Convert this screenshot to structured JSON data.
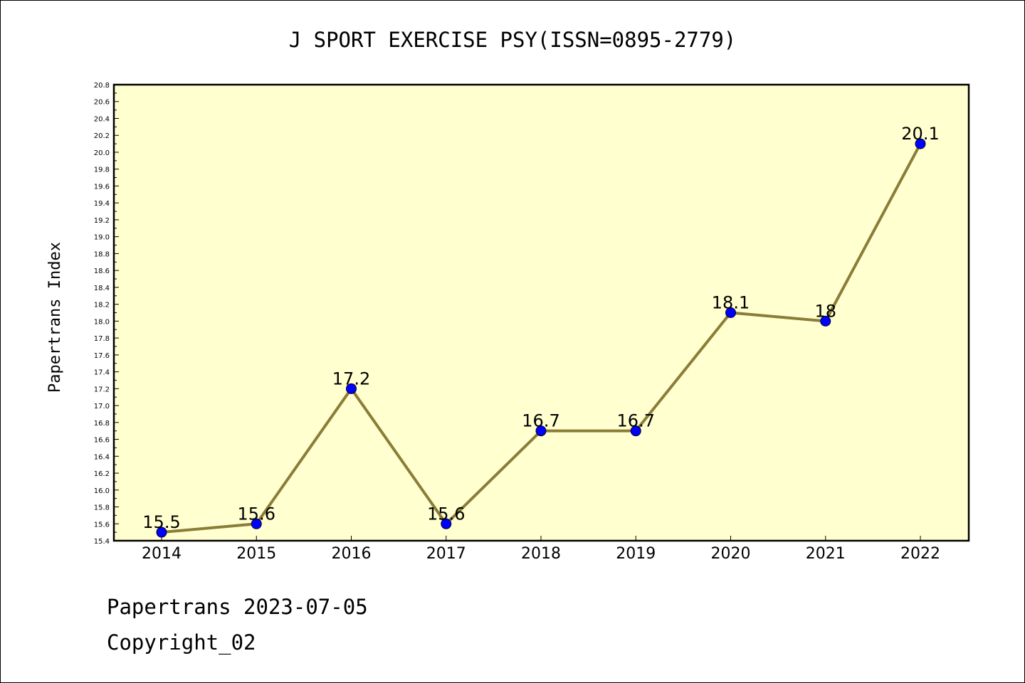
{
  "chart_data": {
    "type": "line",
    "title": "J SPORT EXERCISE PSY(ISSN=0895-2779)",
    "ylabel": "Papertrans Index",
    "xlabel": "",
    "categories": [
      "2014",
      "2015",
      "2016",
      "2017",
      "2018",
      "2019",
      "2020",
      "2021",
      "2022"
    ],
    "values": [
      15.5,
      15.6,
      17.2,
      15.6,
      16.7,
      16.7,
      18.1,
      18.0,
      20.1
    ],
    "data_labels": [
      "15.5",
      "15.6",
      "17.2",
      "15.6",
      "16.7",
      "16.7",
      "18.1",
      "18",
      "20.1"
    ],
    "ylim": [
      15.4,
      20.8
    ],
    "yticks": [
      "15.4",
      "15.6",
      "15.8",
      "16.0",
      "16.2",
      "16.4",
      "16.6",
      "16.8",
      "17.0",
      "17.2",
      "17.4",
      "17.6",
      "17.8",
      "18.0",
      "18.2",
      "18.4",
      "18.6",
      "18.8",
      "19.0",
      "19.2",
      "19.4",
      "19.6",
      "19.8",
      "20.0",
      "20.2",
      "20.4",
      "20.6",
      "20.8"
    ],
    "grid": false,
    "colors": {
      "plot_background": "#ffffd0",
      "line": "#8b7d37",
      "marker": "#0000ff"
    }
  },
  "footer": {
    "line1": "Papertrans 2023-07-05",
    "line2": "Copyright_02"
  }
}
